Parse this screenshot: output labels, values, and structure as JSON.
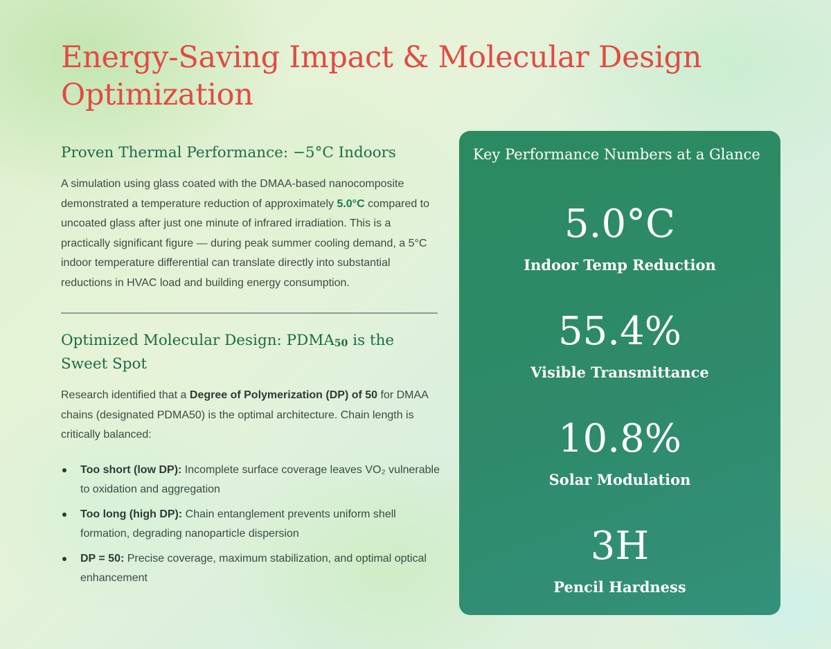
{
  "page_title": "Energy-Saving Impact & Molecular Design Optimization",
  "section1": {
    "heading": "Proven Thermal Performance: −5°C Indoors",
    "para_part1": "A simulation using glass coated with the DMAA-based nanocomposite demonstrated a temperature reduction of approximately ",
    "para_highlight": "5.0°C",
    "para_part2": " compared to uncoated glass after just one minute of infrared irradiation. This is a practically significant figure — during peak summer cooling demand, a 5°C indoor temperature differential can translate directly into substantial reductions in HVAC load and building energy consumption."
  },
  "section2": {
    "heading_part1": "Optimized Molecular Design: PDMA",
    "heading_sub": "50",
    "heading_part2": " is the Sweet Spot",
    "para_part1": "Research identified that a ",
    "para_bold": "Degree of Polymerization (DP) of 50",
    "para_part2": " for DMAA chains (designated PDMA50) is the optimal architecture. Chain length is critically balanced:",
    "bullets": [
      {
        "lead": "Too short (low DP):",
        "text": " Incomplete surface coverage leaves VO₂ vulnerable to oxidation and aggregation"
      },
      {
        "lead": "Too long (high DP):",
        "text": " Chain entanglement prevents uniform shell formation, degrading nanoparticle dispersion"
      },
      {
        "lead": "DP = 50:",
        "text": " Precise coverage, maximum stabilization, and optimal optical enhancement"
      }
    ]
  },
  "panel": {
    "title": "Key Performance Numbers at a Glance",
    "stats": [
      {
        "value": "5.0°C",
        "label": "Indoor Temp Reduction"
      },
      {
        "value": "55.4%",
        "label": "Visible Transmittance"
      },
      {
        "value": "10.8%",
        "label": "Solar Modulation"
      },
      {
        "value": "3H",
        "label": "Pencil Hardness"
      }
    ]
  },
  "colors": {
    "title": "#e24a44",
    "heading": "#1d6b45",
    "panel": "#2e8a66"
  }
}
